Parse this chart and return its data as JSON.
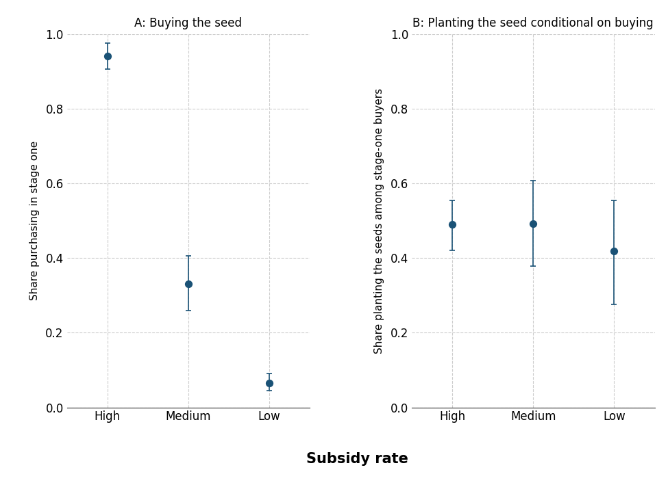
{
  "panel_A": {
    "title": "A: Buying the seed",
    "ylabel": "Share purchasing in stage one",
    "categories": [
      "High",
      "Medium",
      "Low"
    ],
    "values": [
      0.94,
      0.33,
      0.065
    ],
    "ci_lower": [
      0.905,
      0.26,
      0.045
    ],
    "ci_upper": [
      0.975,
      0.405,
      0.09
    ]
  },
  "panel_B": {
    "title": "B: Planting the seed conditional on buying",
    "ylabel": "Share planting the seeds among stage-one buyers",
    "categories": [
      "High",
      "Medium",
      "Low"
    ],
    "values": [
      0.49,
      0.492,
      0.418
    ],
    "ci_lower": [
      0.42,
      0.378,
      0.275
    ],
    "ci_upper": [
      0.555,
      0.608,
      0.555
    ]
  },
  "xlabel": "Subsidy rate",
  "dot_color": "#1a5276",
  "line_color": "#1a5276",
  "background_color": "#ffffff",
  "ylim": [
    0.0,
    1.0
  ],
  "yticks": [
    0.0,
    0.2,
    0.4,
    0.6,
    0.8,
    1.0
  ],
  "grid_color": "#cccccc",
  "dot_size": 50,
  "capsize": 3,
  "linewidth": 1.2
}
